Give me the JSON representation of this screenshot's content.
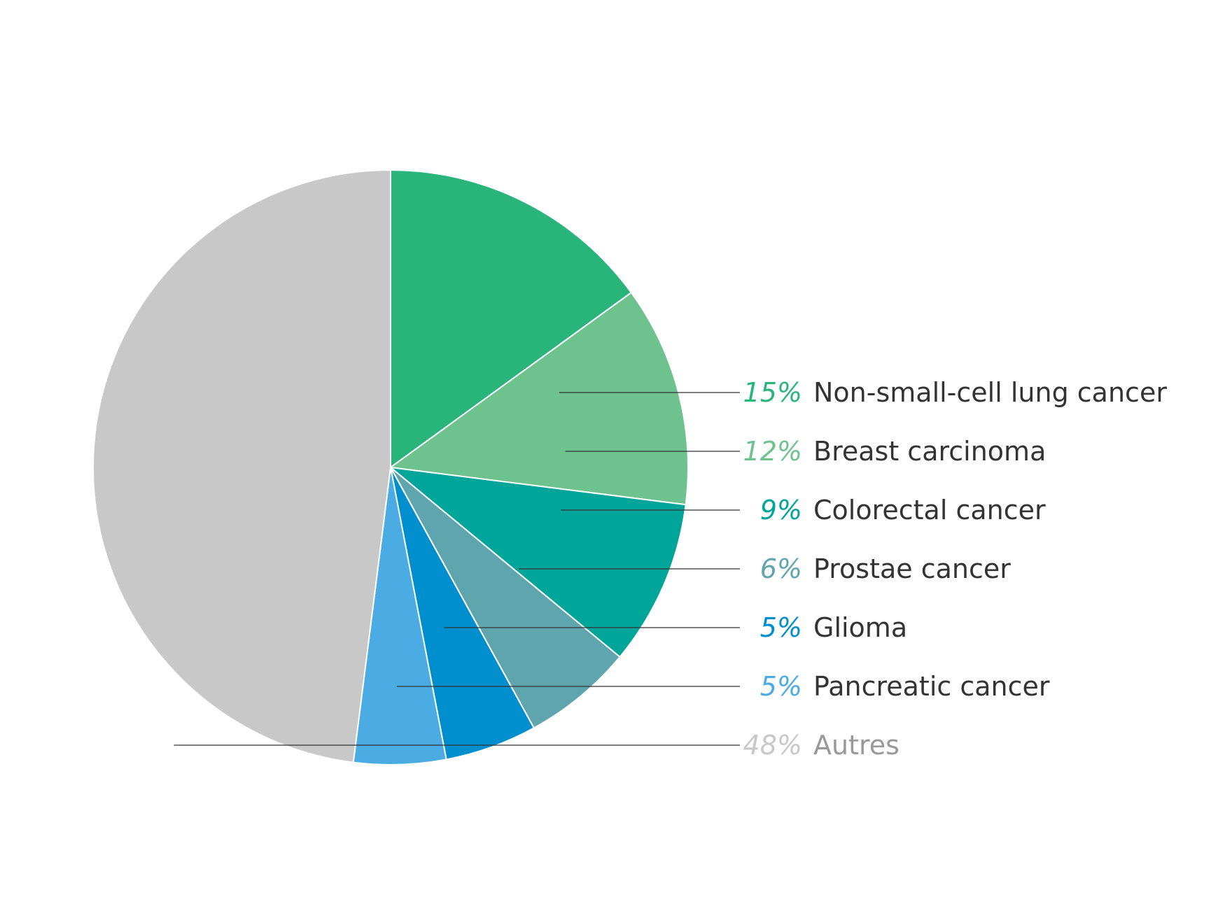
{
  "chart_data": {
    "type": "pie",
    "start_angle": "top",
    "direction": "clockwise",
    "legend_placement": "right",
    "slices": [
      {
        "label": "Non-small-cell lung cancer",
        "percent_label": "15%",
        "value": 15,
        "color": "#29b47c",
        "label_color": "#333333"
      },
      {
        "label": "Breast carcinoma",
        "percent_label": "12%",
        "value": 12,
        "color": "#6dc28d",
        "label_color": "#333333"
      },
      {
        "label": "Colorectal cancer",
        "percent_label": "9%",
        "value": 9,
        "color": "#00a59a",
        "label_color": "#333333"
      },
      {
        "label": "Prostae cancer",
        "percent_label": "6%",
        "value": 6,
        "color": "#5fa5ad",
        "label_color": "#333333"
      },
      {
        "label": "Glioma",
        "percent_label": "5%",
        "value": 5,
        "color": "#008fce",
        "label_color": "#333333"
      },
      {
        "label": "Pancreatic cancer",
        "percent_label": "5%",
        "value": 5,
        "color": "#4aace3",
        "label_color": "#333333"
      },
      {
        "label": "Autres",
        "percent_label": "48%",
        "value": 48,
        "color": "#c8c8c8",
        "label_color": "#999999"
      }
    ]
  }
}
